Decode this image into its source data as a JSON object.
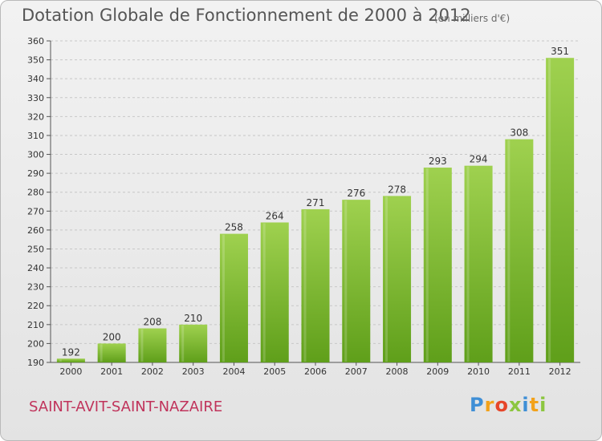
{
  "header": {
    "title": "Dotation Globale de Fonctionnement de 2000 à 2012",
    "subtitle": "(en milliers d'€)"
  },
  "footer": {
    "commune": "SAINT-AVIT-SAINT-NAZAIRE",
    "logo_letters": [
      "P",
      "r",
      "o",
      "x",
      "i",
      "t",
      "i"
    ],
    "logo_colors": [
      "#3f8fd6",
      "#f2a21b",
      "#e6462a",
      "#8cc63f",
      "#3f8fd6",
      "#f2a21b",
      "#8cc63f"
    ]
  },
  "chart_data": {
    "type": "bar",
    "categories": [
      "2000",
      "2001",
      "2002",
      "2003",
      "2004",
      "2005",
      "2006",
      "2007",
      "2008",
      "2009",
      "2010",
      "2011",
      "2012"
    ],
    "values": [
      192,
      200,
      208,
      210,
      258,
      264,
      271,
      276,
      278,
      293,
      294,
      308,
      351
    ],
    "ylim": [
      190,
      360
    ],
    "yticks": [
      190,
      200,
      210,
      220,
      230,
      240,
      250,
      260,
      270,
      280,
      290,
      300,
      310,
      320,
      330,
      340,
      350,
      360
    ],
    "grid": true,
    "bar_color_top": "#9fd14f",
    "bar_color_bottom": "#5f9f1a",
    "data_labels": true
  }
}
